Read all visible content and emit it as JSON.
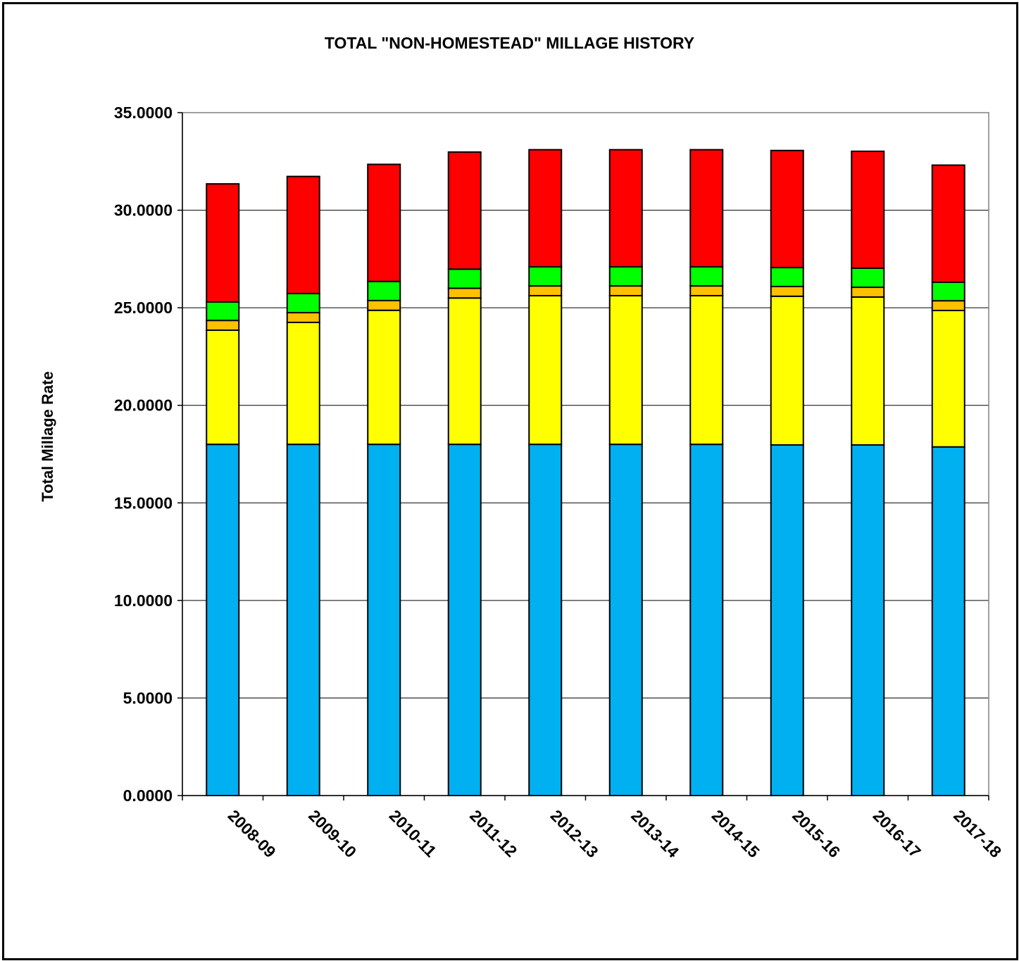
{
  "chart_data": {
    "type": "bar",
    "stacked": true,
    "title": "TOTAL \"NON-HOMESTEAD\" MILLAGE HISTORY",
    "xlabel": "",
    "ylabel": "Total Millage Rate",
    "ylim": [
      0,
      35
    ],
    "yticks": [
      "0.0000",
      "5.0000",
      "10.0000",
      "15.0000",
      "20.0000",
      "25.0000",
      "30.0000",
      "35.0000"
    ],
    "grid": true,
    "legend": "none",
    "categories": [
      "2008-09",
      "2009-10",
      "2010-11",
      "2011-12",
      "2012-13",
      "2013-14",
      "2014-15",
      "2015-16",
      "2016-17",
      "2017-18"
    ],
    "series": [
      {
        "color": "#00B0F0",
        "values": [
          18.0,
          18.0,
          18.0,
          18.0,
          18.0,
          18.0,
          18.0,
          17.97,
          17.97,
          17.87
        ]
      },
      {
        "color": "#FFFF00",
        "values": [
          5.85,
          6.25,
          6.87,
          7.5,
          7.62,
          7.62,
          7.62,
          7.62,
          7.58,
          6.99
        ]
      },
      {
        "color": "#FFC000",
        "values": [
          0.5,
          0.5,
          0.5,
          0.5,
          0.5,
          0.5,
          0.5,
          0.5,
          0.5,
          0.5
        ]
      },
      {
        "color": "#00FF00",
        "values": [
          0.95,
          0.98,
          0.98,
          0.98,
          0.98,
          0.98,
          0.98,
          0.97,
          0.98,
          0.95
        ]
      },
      {
        "color": "#FF0000",
        "values": [
          6.05,
          6.0,
          6.0,
          6.0,
          6.0,
          6.0,
          6.0,
          6.0,
          5.99,
          6.0
        ]
      }
    ]
  }
}
